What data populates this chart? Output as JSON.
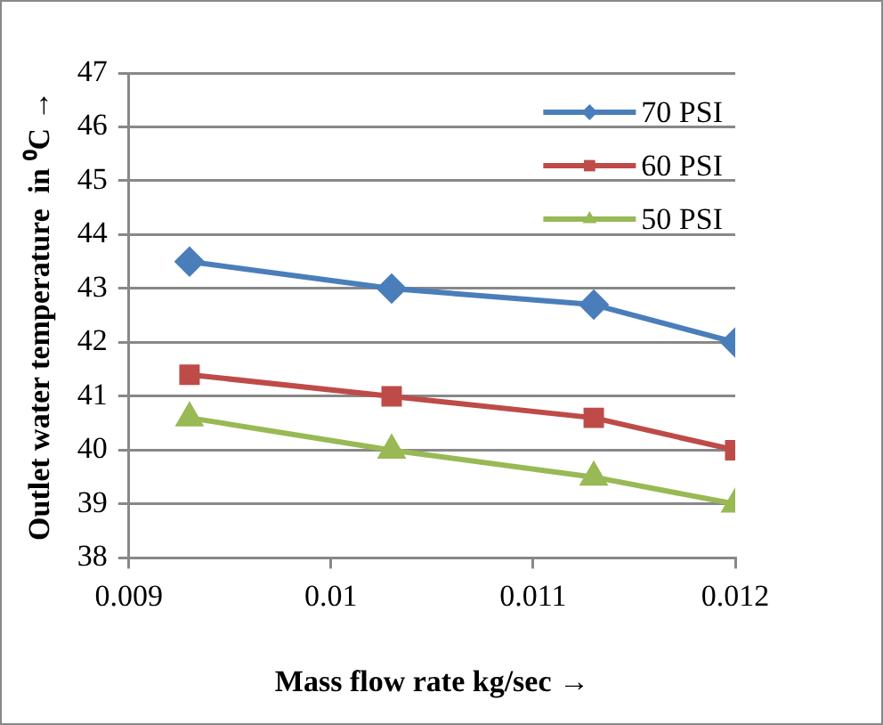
{
  "chart_data": {
    "type": "line",
    "xlabel": "Mass flow rate kg/sec →",
    "ylabel": "Outlet water temperature  in ⁰C →",
    "x": [
      0.0093,
      0.0103,
      0.0113,
      0.012
    ],
    "series": [
      {
        "name": "70 PSI",
        "color": "#4a7ebb",
        "values": [
          43.5,
          43.0,
          42.7,
          42.0
        ],
        "marker": "diamond"
      },
      {
        "name": "60 PSI",
        "color": "#be4b48",
        "values": [
          41.4,
          41.0,
          40.6,
          40.0
        ],
        "marker": "square"
      },
      {
        "name": "50 PSI",
        "color": "#98b954",
        "values": [
          40.6,
          40.0,
          39.5,
          39.0
        ],
        "marker": "triangle"
      }
    ],
    "xlim": [
      0.009,
      0.012
    ],
    "xticks": [
      0.009,
      0.01,
      0.011,
      0.012
    ],
    "ylim": [
      38,
      47
    ],
    "yticks": [
      38,
      39,
      40,
      41,
      42,
      43,
      44,
      45,
      46,
      47
    ],
    "grid": "y",
    "legend": "top right"
  }
}
